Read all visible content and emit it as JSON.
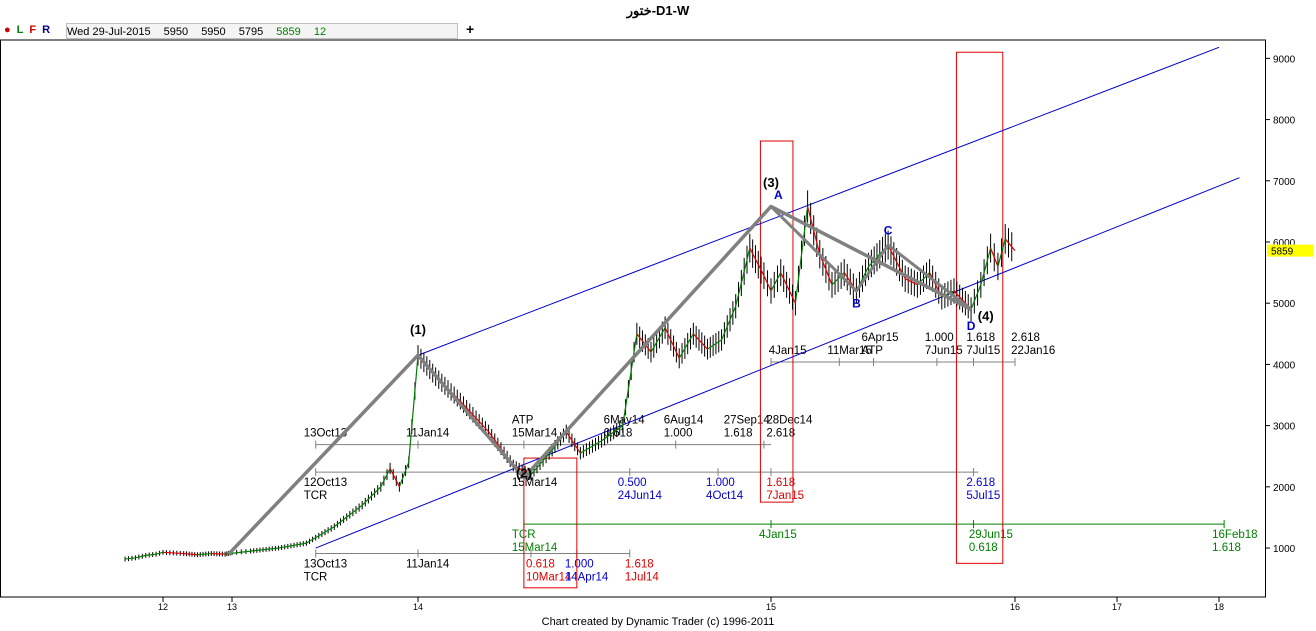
{
  "window": {
    "title": "ختور-D1-W"
  },
  "infobar": {
    "flags": [
      {
        "label": "●",
        "color": "#cc0000"
      },
      {
        "label": "L",
        "color": "#008000"
      },
      {
        "label": "F",
        "color": "#cc0000"
      },
      {
        "label": "R",
        "color": "#000080"
      }
    ],
    "date": "Wed 29-Jul-2015",
    "open": "5950",
    "high": "5950",
    "low": "5795",
    "close": "5859",
    "volume": "12",
    "add_label": "+"
  },
  "footer": {
    "credit": "Chart created by Dynamic Trader  (c) 1996-2011"
  },
  "chart_data": {
    "type": "line",
    "title": "ختور-D1-W",
    "price_axis": {
      "ticks": [
        1000,
        2000,
        3000,
        4000,
        5000,
        6000,
        7000,
        8000,
        9000
      ],
      "range": [
        200,
        9300
      ],
      "last_price": "5859"
    },
    "time_axis": {
      "ticks": [
        "12",
        "13",
        "14",
        "15",
        "16",
        "17",
        "18"
      ]
    },
    "colors": {
      "up_swing": "#008000",
      "down_swing": "#dd0000",
      "wave": "#808080",
      "channel": "#0000cc",
      "box": "#dd0000",
      "last_price_bg": "#ffff00"
    },
    "wave_labels": [
      {
        "text": "(1)",
        "t": 14.0,
        "p": 4500
      },
      {
        "text": "(2)",
        "t": 14.3,
        "p": 2150
      },
      {
        "text": "(3)",
        "t": 15.0,
        "p": 6900
      },
      {
        "text": "(4)",
        "t": 15.88,
        "p": 4720
      }
    ],
    "abcd_labels": [
      {
        "text": "A",
        "t": 15.03,
        "p": 6700
      },
      {
        "text": "B",
        "t": 15.35,
        "p": 4930
      },
      {
        "text": "C",
        "t": 15.48,
        "p": 6120
      },
      {
        "text": "D",
        "t": 15.82,
        "p": 4560
      }
    ],
    "wave_path": [
      [
        12.95,
        900
      ],
      [
        14.0,
        4150
      ],
      [
        14.3,
        2150
      ],
      [
        15.0,
        6580
      ],
      [
        15.82,
        4900
      ]
    ],
    "abcd_path": [
      [
        15.0,
        6580
      ],
      [
        15.35,
        5200
      ],
      [
        15.48,
        5950
      ],
      [
        15.82,
        4900
      ]
    ],
    "channels": [
      {
        "from": [
          13.45,
          1000
        ],
        "to": [
          18.2,
          7050
        ]
      },
      {
        "from": [
          14.0,
          4150
        ],
        "to": [
          18.0,
          9180
        ]
      }
    ],
    "projection_rows": [
      {
        "y_price": 4040,
        "from": 15.0,
        "to": 16.0,
        "ticks": [
          15.0,
          15.28,
          15.42,
          15.68,
          15.83,
          16.0
        ],
        "labels": [
          {
            "lines": [
              "4Jan15"
            ],
            "t": 15.04,
            "color": "#000000"
          },
          {
            "lines": [
              "11Mar15"
            ],
            "t": 15.28,
            "color": "#000000"
          },
          {
            "lines": [
              "6Apr15",
              "ATP"
            ],
            "t": 15.42,
            "color": "#000000"
          },
          {
            "lines": [
              "1.000",
              "7Jun15"
            ],
            "t": 15.68,
            "color": "#000000"
          },
          {
            "lines": [
              "1.618",
              "7Jul15"
            ],
            "t": 15.85,
            "color": "#000000"
          },
          {
            "lines": [
              "2.618",
              "22Jan16"
            ],
            "t": 16.08,
            "color": "#000000"
          }
        ]
      },
      {
        "y_price": 2690,
        "from": 13.45,
        "to": 15.0,
        "ticks": [
          13.45,
          14.0,
          14.3,
          14.73,
          14.98
        ],
        "labels": [
          {
            "lines": [
              "13Oct13"
            ],
            "t": 13.45,
            "color": "#000000"
          },
          {
            "lines": [
              "11Jan14"
            ],
            "t": 14.0,
            "color": "#000000"
          },
          {
            "lines": [
              "ATP",
              "15Mar14"
            ],
            "t": 14.3,
            "color": "#000000"
          },
          {
            "lines": [
              "6May14",
              "0.618"
            ],
            "t": 14.56,
            "color": "#000000"
          },
          {
            "lines": [
              "6Aug14",
              "1.000"
            ],
            "t": 14.73,
            "color": "#000000"
          },
          {
            "lines": [
              "27Sep14",
              "1.618"
            ],
            "t": 14.9,
            "color": "#000000"
          },
          {
            "lines": [
              "28Dec14",
              "2.618"
            ],
            "t": 15.03,
            "color": "#000000"
          }
        ]
      },
      {
        "y_price": 2240,
        "from": 13.45,
        "to": 15.85,
        "ticks": [
          13.45,
          14.3,
          14.6,
          14.85,
          15.0,
          15.83
        ],
        "labels": [
          {
            "lines": [
              "12Oct13",
              "TCR"
            ],
            "t": 13.45,
            "color": "#000000"
          },
          {
            "lines": [
              "15Mar14"
            ],
            "t": 14.3,
            "color": "#000000"
          },
          {
            "lines": [
              "0.500",
              "24Jun14"
            ],
            "t": 14.6,
            "color": "#0000cc"
          },
          {
            "lines": [
              "1.000",
              "4Oct14"
            ],
            "t": 14.85,
            "color": "#0000cc"
          },
          {
            "lines": [
              "1.618",
              "7Jan15"
            ],
            "t": 15.03,
            "color": "#dd0000"
          },
          {
            "lines": [
              "2.618",
              "5Jul15"
            ],
            "t": 15.85,
            "color": "#0000cc"
          }
        ]
      },
      {
        "y_price": 1390,
        "from": 14.3,
        "to": 18.05,
        "ticks": [
          14.3,
          15.0,
          15.83,
          18.05
        ],
        "labels": [
          {
            "lines": [
              "TCR",
              "15Mar14"
            ],
            "t": 14.3,
            "color": "#008000"
          },
          {
            "lines": [
              "4Jan15"
            ],
            "t": 15.0,
            "color": "#008000"
          },
          {
            "lines": [
              "29Jun15",
              "0.618"
            ],
            "t": 15.86,
            "color": "#008000"
          },
          {
            "lines": [
              "16Feb18",
              "1.618"
            ],
            "t": 18.05,
            "color": "#008000"
          }
        ]
      },
      {
        "y_price": 910,
        "from": 13.45,
        "to": 14.6,
        "ticks": [
          13.45,
          14.0,
          14.32,
          14.45,
          14.6
        ],
        "labels": [
          {
            "lines": [
              "13Oct13",
              "TCR"
            ],
            "t": 13.45,
            "color": "#000000"
          },
          {
            "lines": [
              "11Jan14"
            ],
            "t": 14.0,
            "color": "#000000"
          },
          {
            "lines": [
              "0.618",
              "10Mar14"
            ],
            "t": 14.34,
            "color": "#dd0000"
          },
          {
            "lines": [
              "1.000",
              "14Apr14"
            ],
            "t": 14.45,
            "color": "#0000cc"
          },
          {
            "lines": [
              "1.618",
              "1Jul14"
            ],
            "t": 14.62,
            "color": "#dd0000"
          }
        ]
      }
    ],
    "boxes": [
      {
        "t1": 14.3,
        "t2": 14.45,
        "p1": 2470,
        "p2": 350
      },
      {
        "t1": 14.97,
        "t2": 15.09,
        "p1": 7650,
        "p2": 1750
      },
      {
        "t1": 15.76,
        "t2": 15.95,
        "p1": 9100,
        "p2": 750
      }
    ],
    "price_path": [
      [
        11.45,
        820
      ],
      [
        11.6,
        840
      ],
      [
        11.75,
        880
      ],
      [
        11.9,
        900
      ],
      [
        12.0,
        930
      ],
      [
        12.15,
        920
      ],
      [
        12.3,
        910
      ],
      [
        12.5,
        890
      ],
      [
        12.7,
        910
      ],
      [
        12.9,
        900
      ],
      [
        13.1,
        950
      ],
      [
        13.25,
        1000
      ],
      [
        13.4,
        1080
      ],
      [
        13.55,
        1350
      ],
      [
        13.7,
        1700
      ],
      [
        13.8,
        2000
      ],
      [
        13.85,
        2300
      ],
      [
        13.9,
        2000
      ],
      [
        13.95,
        2400
      ],
      [
        14.0,
        4150
      ],
      [
        14.05,
        3800
      ],
      [
        14.12,
        3400
      ],
      [
        14.2,
        2900
      ],
      [
        14.27,
        2350
      ],
      [
        14.32,
        2200
      ],
      [
        14.38,
        2600
      ],
      [
        14.42,
        2900
      ],
      [
        14.46,
        2550
      ],
      [
        14.52,
        2750
      ],
      [
        14.58,
        3000
      ],
      [
        14.62,
        4500
      ],
      [
        14.66,
        4200
      ],
      [
        14.7,
        4600
      ],
      [
        14.74,
        4100
      ],
      [
        14.78,
        4500
      ],
      [
        14.82,
        4250
      ],
      [
        14.86,
        4400
      ],
      [
        14.9,
        4950
      ],
      [
        14.94,
        5900
      ],
      [
        14.98,
        5450
      ],
      [
        15.0,
        5200
      ],
      [
        15.04,
        5500
      ],
      [
        15.1,
        5000
      ],
      [
        15.15,
        6580
      ],
      [
        15.2,
        5800
      ],
      [
        15.25,
        5300
      ],
      [
        15.3,
        5500
      ],
      [
        15.35,
        5200
      ],
      [
        15.4,
        5600
      ],
      [
        15.48,
        5950
      ],
      [
        15.55,
        5400
      ],
      [
        15.6,
        5300
      ],
      [
        15.65,
        5500
      ],
      [
        15.7,
        5100
      ],
      [
        15.75,
        5200
      ],
      [
        15.82,
        4900
      ],
      [
        15.86,
        5300
      ],
      [
        15.9,
        5900
      ],
      [
        15.93,
        5600
      ],
      [
        15.96,
        6050
      ],
      [
        16.0,
        5859
      ]
    ]
  }
}
